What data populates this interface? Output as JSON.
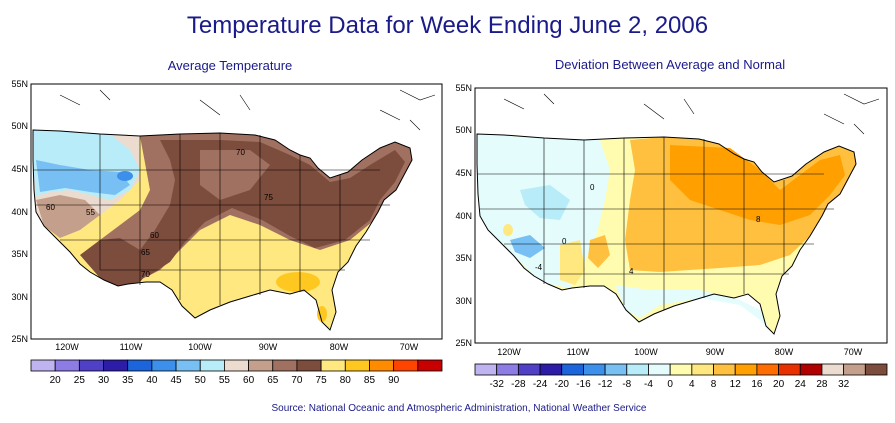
{
  "title": "Temperature Data for Week Ending June 2, 2006",
  "source": "Source:  National Oceanic and Atmospheric Administration, National Weather Service",
  "maps": [
    {
      "title": "Average Temperature",
      "lat_labels": [
        "55N",
        "50N",
        "45N",
        "40N",
        "35N",
        "30N",
        "25N"
      ],
      "lon_labels": [
        "120W",
        "110W",
        "100W",
        "90W",
        "80W",
        "70W"
      ],
      "contour_labels": [
        "70",
        "75",
        "60",
        "55",
        "60",
        "65",
        "70"
      ],
      "legend_values": [
        "20",
        "25",
        "30",
        "35",
        "40",
        "45",
        "50",
        "55",
        "60",
        "65",
        "70",
        "75",
        "80",
        "85",
        "90"
      ],
      "legend_colors": [
        "#c0b4f0",
        "#8c7ce4",
        "#5040c8",
        "#2c1ca8",
        "#1c64dc",
        "#3c90ec",
        "#78c0f4",
        "#b8ecf8",
        "#ecdcd0",
        "#c4a08c",
        "#a07060",
        "#7c4c3c",
        "#ffe880",
        "#ffc820",
        "#ff8c00",
        "#ff4400",
        "#c80000"
      ]
    },
    {
      "title": "Deviation Between Average and Normal",
      "lat_labels": [
        "55N",
        "50N",
        "45N",
        "40N",
        "35N",
        "30N",
        "25N"
      ],
      "lon_labels": [
        "120W",
        "110W",
        "100W",
        "90W",
        "80W",
        "70W"
      ],
      "contour_labels": [
        "0",
        "-4",
        "4",
        "8",
        "0"
      ],
      "legend_values": [
        "-32",
        "-28",
        "-24",
        "-20",
        "-16",
        "-12",
        "-8",
        "-4",
        "0",
        "4",
        "8",
        "12",
        "16",
        "20",
        "24",
        "28",
        "32"
      ],
      "legend_colors": [
        "#c0b4f0",
        "#8c7ce4",
        "#5040c8",
        "#2c1ca8",
        "#1c64dc",
        "#3c90ec",
        "#78c0f4",
        "#b8ecf8",
        "#e4fcfc",
        "#fffcb0",
        "#ffe880",
        "#ffc040",
        "#ffa000",
        "#ff6c00",
        "#e83000",
        "#b00000",
        "#ecdcd0",
        "#c4a08c",
        "#7c4c3c"
      ]
    }
  ]
}
